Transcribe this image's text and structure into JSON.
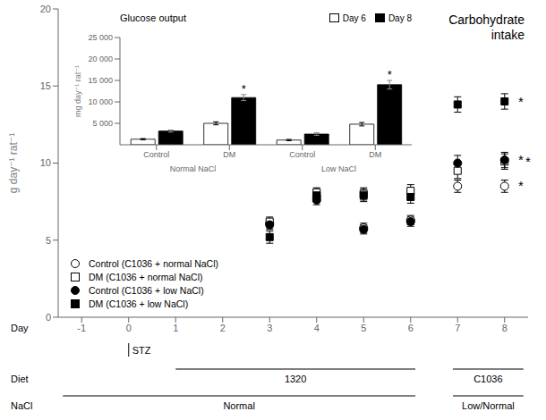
{
  "chart_data": [
    {
      "type": "scatter",
      "title": "Carbohydrate\nintake",
      "ylabel": "g day⁻¹ rat⁻¹",
      "xlim": [
        -1.5,
        8.5
      ],
      "xticks": [
        -1,
        0,
        1,
        2,
        3,
        4,
        5,
        6,
        7,
        8
      ],
      "ylim": [
        0,
        20
      ],
      "yticks": [
        0,
        5,
        10,
        15,
        20
      ],
      "legend": "lower left",
      "series": [
        {
          "name": "Control (C1036 + normal NaCl)",
          "color": "black",
          "marker": "open-circle",
          "x": [
            3,
            4,
            5,
            6,
            7,
            8
          ],
          "values": [
            6.1,
            7.8,
            5.8,
            6.3,
            8.5,
            8.5
          ],
          "errors": [
            0.3,
            0.3,
            0.3,
            0.3,
            0.4,
            0.4
          ]
        },
        {
          "name": "DM (C1036 + normal NaCl)",
          "color": "black",
          "marker": "open-square",
          "x": [
            3,
            4,
            5,
            6,
            7,
            8
          ],
          "values": [
            6.2,
            8.1,
            8.0,
            8.2,
            9.5,
            10.1
          ],
          "errors": [
            0.3,
            0.3,
            0.4,
            0.4,
            0.5,
            0.5
          ]
        },
        {
          "name": "Control (C1036 + low NaCl)",
          "color": "black",
          "marker": "circle",
          "x": [
            3,
            4,
            5,
            6,
            7,
            8
          ],
          "values": [
            6.0,
            7.6,
            5.7,
            6.2,
            10.0,
            10.2
          ],
          "errors": [
            0.3,
            0.3,
            0.3,
            0.3,
            0.5,
            0.5
          ]
        },
        {
          "name": "DM (C1036 + low NaCl)",
          "color": "black",
          "marker": "square",
          "x": [
            3,
            4,
            5,
            6,
            7,
            8
          ],
          "values": [
            5.2,
            7.9,
            7.9,
            7.8,
            13.8,
            14.0
          ],
          "errors": [
            0.4,
            0.4,
            0.4,
            0.4,
            0.5,
            0.5
          ]
        }
      ],
      "annotations": [
        {
          "text": "*",
          "x": 8.25,
          "y": 14.0
        },
        {
          "text": "*",
          "x": 8.25,
          "y": 10.2
        },
        {
          "text": "*",
          "x": 8.25,
          "y": 10.1
        },
        {
          "text": "*",
          "x": 8.25,
          "y": 8.5
        },
        {
          "text": "Day",
          "row": 0
        },
        {
          "text": "Diet",
          "row": 1
        },
        {
          "text": "NaCl",
          "row": 2
        },
        {
          "text": "STZ",
          "row": 0,
          "x": 0
        },
        {
          "text": "1320",
          "row": 1,
          "x": [
            1.0,
            6.1
          ]
        },
        {
          "text": "C1036",
          "row": 1,
          "x": [
            6.9,
            8.4
          ]
        },
        {
          "text": "Normal",
          "row": 2,
          "x": [
            -1.4,
            6.1
          ]
        },
        {
          "text": "Low/Normal",
          "row": 2,
          "x": [
            6.9,
            8.4
          ]
        }
      ]
    },
    {
      "type": "bar",
      "title": "Glucose output",
      "ylabel": "mg day⁻¹ rat⁻¹",
      "categories": [
        "Control",
        "DM",
        "Control",
        "DM"
      ],
      "category_groups": [
        {
          "label": "Normal NaCl",
          "size": 2
        },
        {
          "label": "Low NaCl",
          "size": 2
        }
      ],
      "ylim": [
        0,
        25000
      ],
      "yticks": [
        {
          "value": 5000,
          "label": "5 000"
        },
        {
          "value": 10000,
          "label": "10 000"
        },
        {
          "value": 15000,
          "label": "15 000"
        },
        {
          "value": 20000,
          "label": "20 000"
        },
        {
          "value": 25000,
          "label": "25 000"
        }
      ],
      "legend": "upper right",
      "series": [
        {
          "name": "Day 6",
          "color": "white",
          "values": [
            1300,
            5000,
            1100,
            4800
          ],
          "errors": [
            150,
            350,
            150,
            400
          ]
        },
        {
          "name": "Day 8",
          "color": "black",
          "values": [
            3200,
            11000,
            2500,
            14000
          ],
          "errors": [
            250,
            700,
            300,
            1000
          ]
        }
      ],
      "annotations": [
        {
          "text": "*",
          "series": "Day 8",
          "category": 1
        },
        {
          "text": "*",
          "series": "Day 8",
          "category": 3
        }
      ]
    }
  ]
}
